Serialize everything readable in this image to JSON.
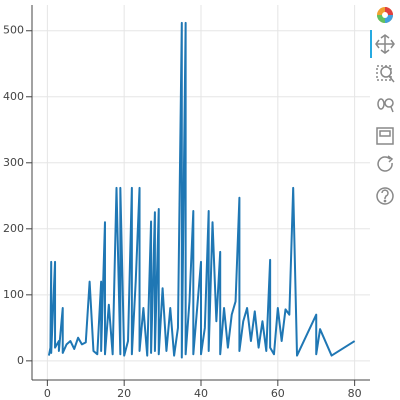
{
  "chart_data": {
    "type": "line",
    "color": "#1f77b4",
    "grid": true,
    "xlim": [
      -4,
      84
    ],
    "ylim": [
      -29,
      539
    ],
    "xticks": [
      0,
      20,
      40,
      60,
      80
    ],
    "yticks": [
      0,
      100,
      200,
      300,
      400,
      500
    ],
    "x": [
      0.4,
      0.8,
      1,
      1,
      2,
      2,
      3,
      3,
      4,
      4,
      5,
      6,
      7,
      8,
      9,
      10,
      11,
      12,
      13,
      14,
      14,
      15,
      15,
      16,
      17,
      18,
      19,
      19,
      20,
      21,
      22,
      22,
      23,
      24,
      24,
      25,
      26,
      27,
      27,
      28,
      28,
      29,
      29,
      30,
      31,
      32,
      33,
      34,
      35,
      35,
      36,
      36,
      37,
      38,
      38,
      39,
      40,
      40,
      41,
      42,
      42,
      43,
      44,
      45,
      45,
      46,
      47,
      48,
      49,
      50,
      50,
      51,
      52,
      53,
      54,
      55,
      56,
      57,
      58,
      58,
      59,
      60,
      61,
      62,
      63,
      64,
      65,
      70,
      70,
      71,
      74,
      80
    ],
    "values": [
      8,
      20,
      150,
      12,
      150,
      20,
      30,
      15,
      80,
      12,
      25,
      30,
      18,
      35,
      25,
      28,
      120,
      15,
      10,
      120,
      15,
      210,
      10,
      85,
      10,
      262,
      10,
      262,
      8,
      30,
      262,
      10,
      120,
      262,
      15,
      80,
      8,
      211,
      12,
      225,
      15,
      230,
      10,
      110,
      15,
      80,
      8,
      50,
      512,
      5,
      512,
      10,
      90,
      227,
      10,
      80,
      150,
      10,
      50,
      227,
      15,
      210,
      60,
      165,
      10,
      80,
      20,
      70,
      90,
      247,
      15,
      60,
      80,
      30,
      75,
      20,
      60,
      15,
      153,
      20,
      10,
      80,
      30,
      78,
      70,
      262,
      8,
      70,
      10,
      48,
      8,
      30
    ]
  }
}
